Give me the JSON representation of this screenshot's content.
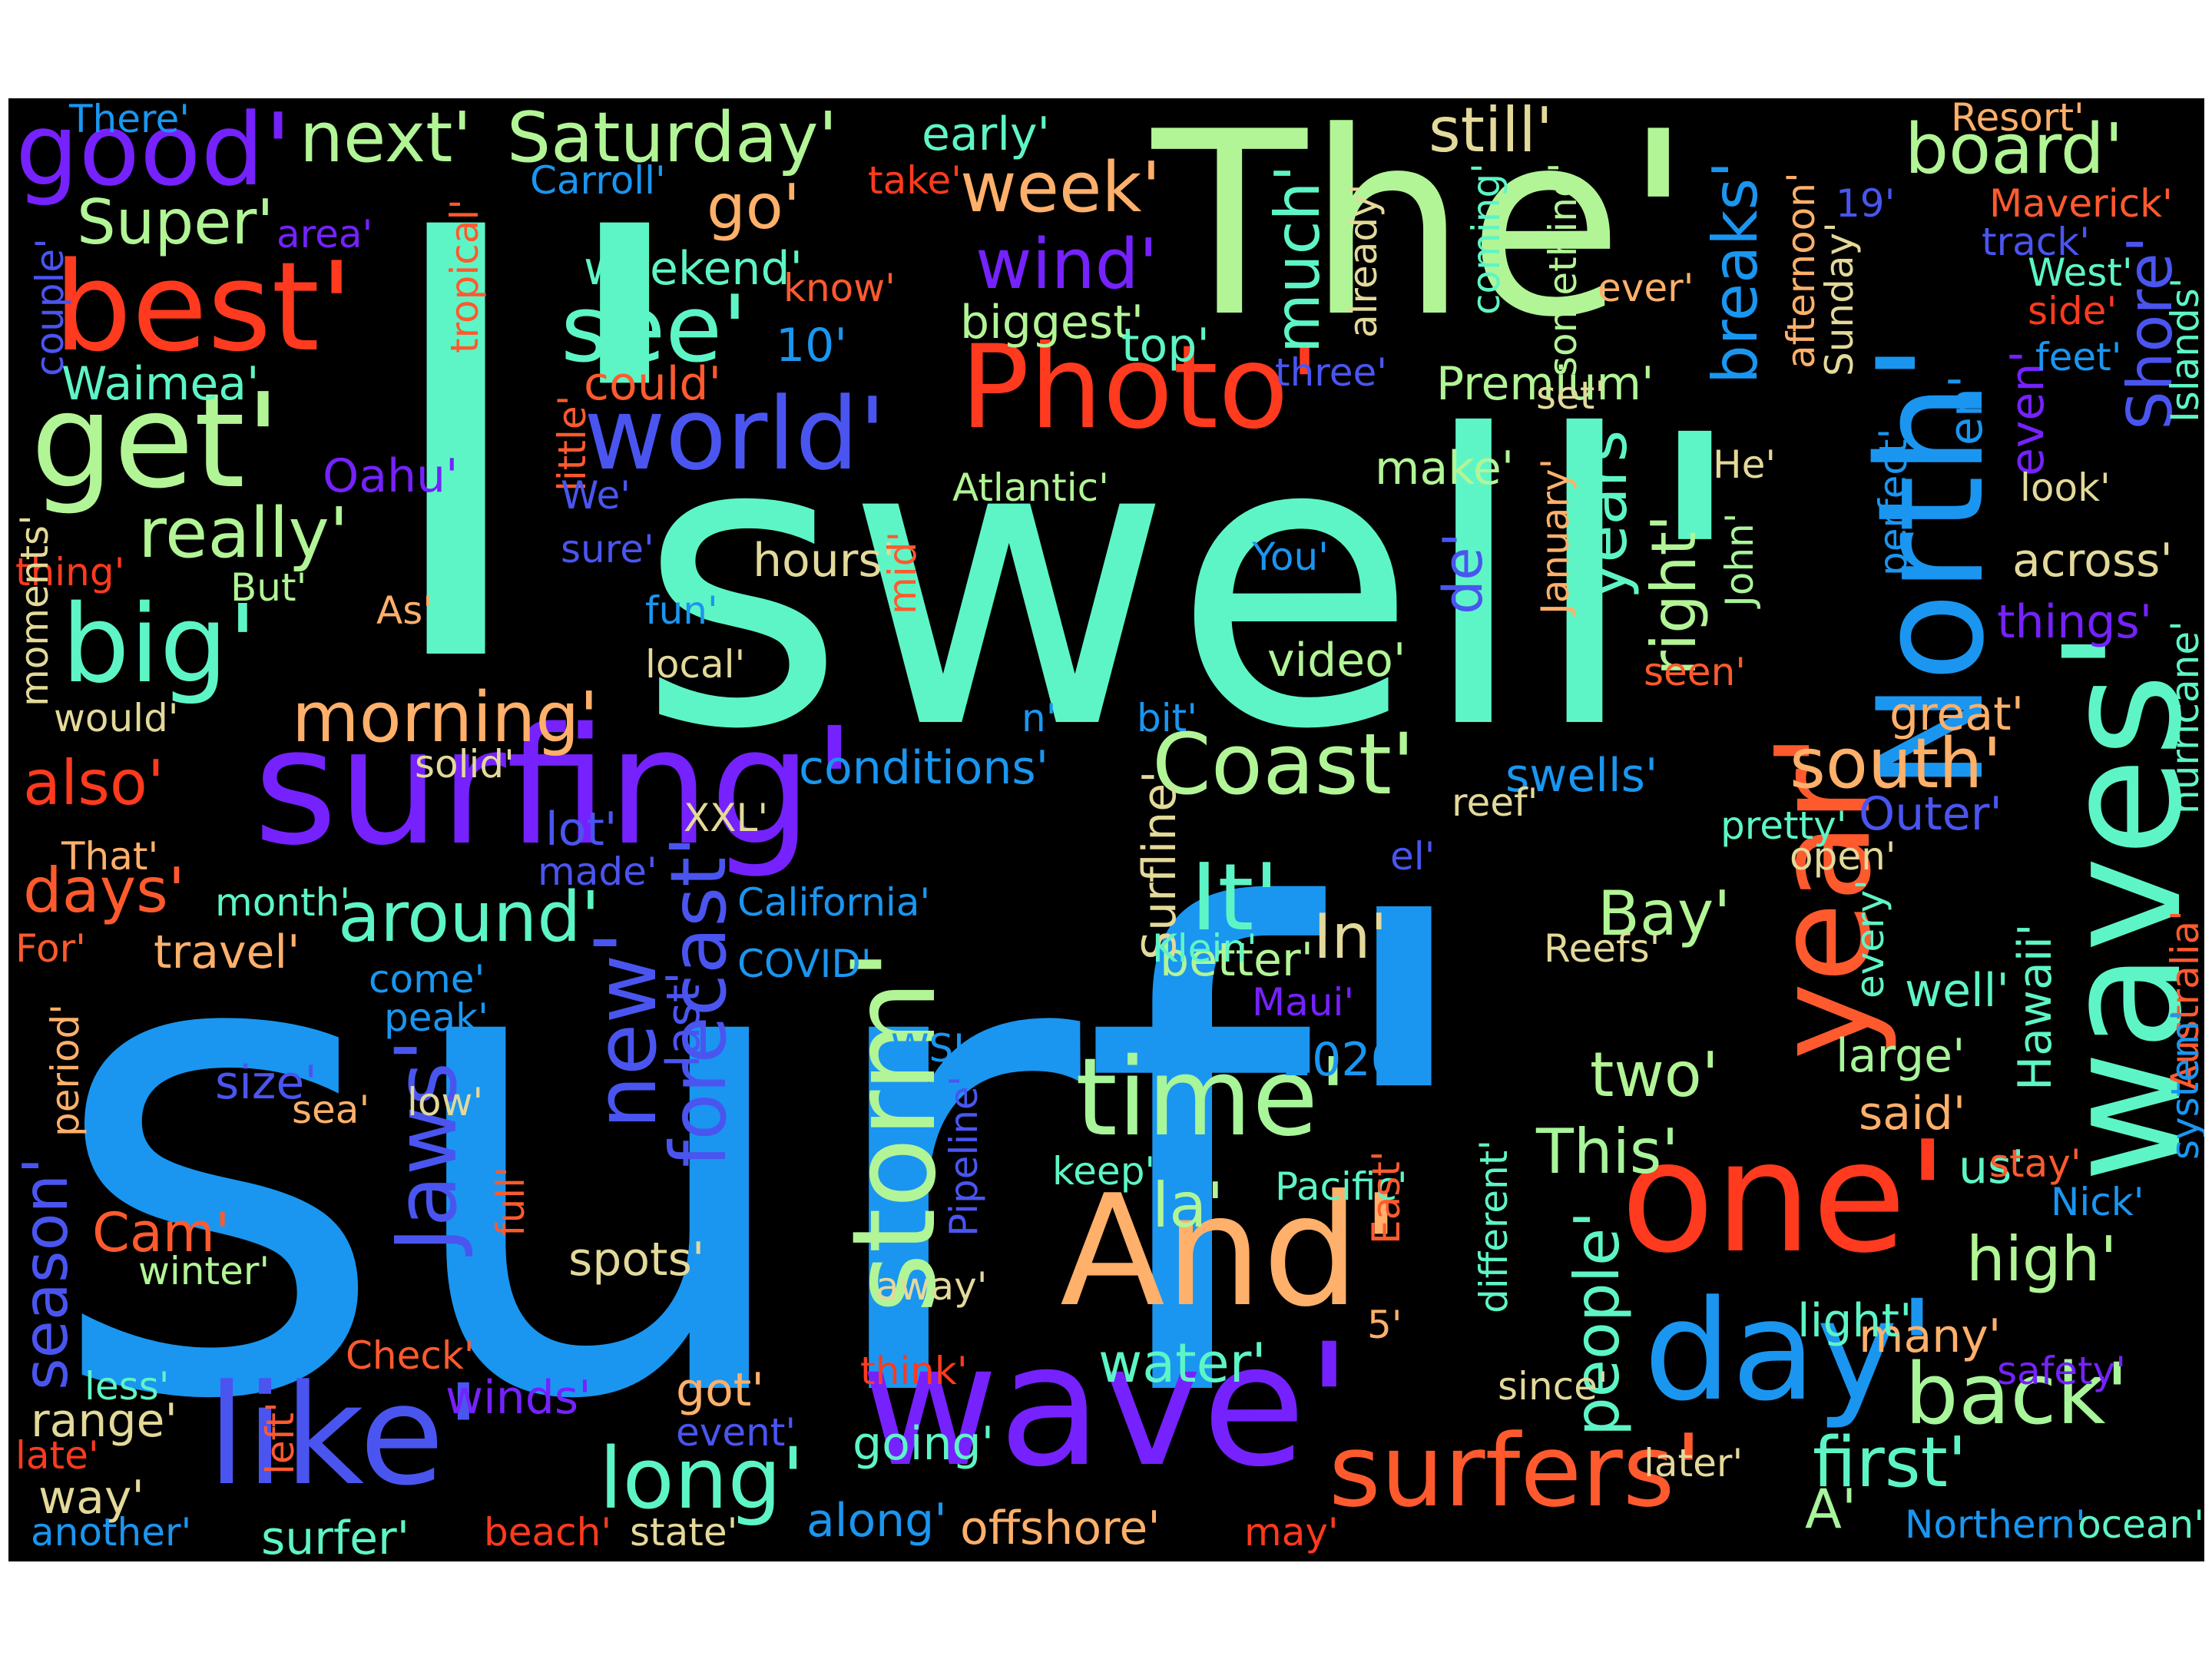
{
  "word_cloud": {
    "background": "#000000",
    "words": [
      {
        "text": "I'",
        "color": "#5ef5c6"
      },
      {
        "text": "surf'",
        "color": "#1a96f0"
      },
      {
        "text": "swell'",
        "color": "#5ef5c6"
      },
      {
        "text": "The'",
        "color": "#b2f596"
      },
      {
        "text": "surfing'",
        "color": "#7522ff"
      },
      {
        "text": "wave'",
        "color": "#7522ff"
      },
      {
        "text": "waves'",
        "color": "#5ef5c6"
      },
      {
        "text": "one'",
        "color": "#ff3a1e"
      },
      {
        "text": "day'",
        "color": "#1a96f0"
      },
      {
        "text": "North'",
        "color": "#1a96f0"
      },
      {
        "text": "year'",
        "color": "#ff5a2e"
      },
      {
        "text": "Photo'",
        "color": "#ff3a1e"
      },
      {
        "text": "And'",
        "color": "#ffb06a"
      },
      {
        "text": "storm'",
        "color": "#b2f596"
      },
      {
        "text": "like'",
        "color": "#4a55f0"
      },
      {
        "text": "time'",
        "color": "#a8f59a"
      },
      {
        "text": "get'",
        "color": "#b2f596"
      },
      {
        "text": "best'",
        "color": "#ff3a1e"
      },
      {
        "text": "big'",
        "color": "#5ef5c6"
      },
      {
        "text": "surfers'",
        "color": "#ff5a2e"
      },
      {
        "text": "good'",
        "color": "#7522ff"
      },
      {
        "text": "see'",
        "color": "#5ef5c6"
      },
      {
        "text": "world'",
        "color": "#4a55f0"
      },
      {
        "text": "Coast'",
        "color": "#b2f596"
      },
      {
        "text": "back'",
        "color": "#a8f59a"
      },
      {
        "text": "long'",
        "color": "#5ef5c6"
      },
      {
        "text": "first'",
        "color": "#5ef5c6"
      },
      {
        "text": "Jaws'",
        "color": "#4a55f0"
      },
      {
        "text": "new'",
        "color": "#4a55f0"
      },
      {
        "text": "forecast'",
        "color": "#4a55f0"
      },
      {
        "text": "really'",
        "color": "#b2f596"
      },
      {
        "text": "next'",
        "color": "#b2f596"
      },
      {
        "text": "Saturday'",
        "color": "#b2f596"
      },
      {
        "text": "board'",
        "color": "#b2f596"
      },
      {
        "text": "It'",
        "color": "#5ef5c6"
      },
      {
        "text": "morning'",
        "color": "#ffb06a"
      },
      {
        "text": "around'",
        "color": "#5ef5c6"
      },
      {
        "text": "week'",
        "color": "#ffb06a"
      },
      {
        "text": "wind'",
        "color": "#7522ff"
      },
      {
        "text": "south'",
        "color": "#ffb06a"
      },
      {
        "text": "season'",
        "color": "#4a55f0"
      },
      {
        "text": "days'",
        "color": "#ff5a2e"
      },
      {
        "text": "also'",
        "color": "#ff3a1e"
      },
      {
        "text": "much'",
        "color": "#5ef5c6"
      },
      {
        "text": "still'",
        "color": "#e3d99a"
      },
      {
        "text": "breaks'",
        "color": "#1a96f0"
      },
      {
        "text": "Shore'",
        "color": "#4a55f0"
      },
      {
        "text": "years'",
        "color": "#5ef5c6"
      },
      {
        "text": "right'",
        "color": "#b2f596"
      },
      {
        "text": "Super'",
        "color": "#b2f596"
      },
      {
        "text": "go'",
        "color": "#ffb06a"
      },
      {
        "text": "two'",
        "color": "#b2f596"
      },
      {
        "text": "This'",
        "color": "#a8f59a"
      },
      {
        "text": "high'",
        "color": "#b2f596"
      },
      {
        "text": "people'",
        "color": "#5ef5c6"
      },
      {
        "text": "Bay'",
        "color": "#b2f596"
      },
      {
        "text": "In'",
        "color": "#e3d99a"
      },
      {
        "text": "la'",
        "color": "#b2f596"
      },
      {
        "text": "water'",
        "color": "#5ef5c6"
      },
      {
        "text": "Cam'",
        "color": "#ff5a2e"
      },
      {
        "text": "biggest'",
        "color": "#b2f596"
      },
      {
        "text": "Premium'",
        "color": "#b2f596"
      },
      {
        "text": "video'",
        "color": "#b2f596"
      },
      {
        "text": "Hawaii'",
        "color": "#5ef5c6"
      },
      {
        "text": "Outer'",
        "color": "#4a55f0"
      },
      {
        "text": "swells'",
        "color": "#1a96f0"
      },
      {
        "text": "de'",
        "color": "#4a55f0"
      },
      {
        "text": "A'",
        "color": "#a8f59a"
      },
      {
        "text": "range'",
        "color": "#e3d99a"
      },
      {
        "text": "got'",
        "color": "#ffb06a"
      },
      {
        "text": "going'",
        "color": "#5ef5c6"
      },
      {
        "text": "offshore'",
        "color": "#ffb06a"
      },
      {
        "text": "surfer'",
        "color": "#5ef5c6"
      },
      {
        "text": "along'",
        "color": "#1a96f0"
      },
      {
        "text": "way'",
        "color": "#e3d99a"
      },
      {
        "text": "many'",
        "color": "#ffb06a"
      },
      {
        "text": "even'",
        "color": "#7522ff"
      },
      {
        "text": "en'",
        "color": "#1a96f0"
      },
      {
        "text": "things'",
        "color": "#7522ff"
      },
      {
        "text": "across'",
        "color": "#e3d99a"
      },
      {
        "text": "hours'",
        "color": "#e3d99a"
      },
      {
        "text": "make'",
        "color": "#b2f596"
      },
      {
        "text": "conditions'",
        "color": "#1a96f0"
      },
      {
        "text": "size'",
        "color": "#4a55f0"
      },
      {
        "text": "winds'",
        "color": "#7522ff"
      },
      {
        "text": "light'",
        "color": "#5ef5c6"
      },
      {
        "text": "large'",
        "color": "#a8f59a"
      },
      {
        "text": "said'",
        "color": "#ffb06a"
      },
      {
        "text": "us'",
        "color": "#5ef5c6"
      },
      {
        "text": "2020'",
        "color": "#1a96f0"
      },
      {
        "text": "better'",
        "color": "#b2f596"
      },
      {
        "text": "Surfline'",
        "color": "#e3d99a"
      },
      {
        "text": "well'",
        "color": "#5ef5c6"
      },
      {
        "text": "weekend'",
        "color": "#5ef5c6"
      },
      {
        "text": "Waimea'",
        "color": "#5ef5c6"
      },
      {
        "text": "early'",
        "color": "#5ef5c6"
      },
      {
        "text": "Oahu'",
        "color": "#7522ff"
      },
      {
        "text": "travel'",
        "color": "#ffb06a"
      },
      {
        "text": "last'",
        "color": "#4a55f0"
      },
      {
        "text": "spots'",
        "color": "#e3d99a"
      },
      {
        "text": "lot'",
        "color": "#4a55f0"
      },
      {
        "text": "could'",
        "color": "#ff5a2e"
      },
      {
        "text": "top'",
        "color": "#5ef5c6"
      },
      {
        "text": "10'",
        "color": "#1a96f0"
      },
      {
        "text": "great'",
        "color": "#ffb06a"
      },
      {
        "text": "Resort'",
        "color": "#ffb06a"
      },
      {
        "text": "track'",
        "color": "#4a55f0"
      },
      {
        "text": "Maverick'",
        "color": "#ff5a2e"
      },
      {
        "text": "West'",
        "color": "#5ef5c6"
      },
      {
        "text": "feet'",
        "color": "#1a96f0"
      },
      {
        "text": "look'",
        "color": "#e3d99a"
      },
      {
        "text": "Islands'",
        "color": "#5ef5c6"
      },
      {
        "text": "hurricane'",
        "color": "#5ef5c6"
      },
      {
        "text": "Australia'",
        "color": "#ff5a2e"
      },
      {
        "text": "system'",
        "color": "#1a96f0"
      },
      {
        "text": "ocean'",
        "color": "#5ef5c6"
      },
      {
        "text": "Northern'",
        "color": "#1a96f0"
      },
      {
        "text": "safety'",
        "color": "#7522ff"
      },
      {
        "text": "Nick'",
        "color": "#1a96f0"
      },
      {
        "text": "stay'",
        "color": "#ff5a2e"
      },
      {
        "text": "pretty'",
        "color": "#5ef5c6"
      },
      {
        "text": "open'",
        "color": "#e3d99a"
      },
      {
        "text": "every'",
        "color": "#5ef5c6"
      },
      {
        "text": "perfect'",
        "color": "#1a96f0"
      },
      {
        "text": "He'",
        "color": "#e3d99a"
      },
      {
        "text": "John'",
        "color": "#a8f59a"
      },
      {
        "text": "seen'",
        "color": "#ff5a2e"
      },
      {
        "text": "January'",
        "color": "#ffb06a"
      },
      {
        "text": "afternoon'",
        "color": "#ffb06a"
      },
      {
        "text": "Sunday'",
        "color": "#e3d99a"
      },
      {
        "text": "something'",
        "color": "#b2f596"
      },
      {
        "text": "coming'",
        "color": "#5ef5c6"
      },
      {
        "text": "already'",
        "color": "#e3d99a"
      },
      {
        "text": "ever'",
        "color": "#ffb06a"
      },
      {
        "text": "set'",
        "color": "#e3d99a"
      },
      {
        "text": "19'",
        "color": "#4a55f0"
      },
      {
        "text": "side'",
        "color": "#ff3a1e"
      },
      {
        "text": "There'",
        "color": "#1a96f0"
      },
      {
        "text": "Carroll'",
        "color": "#1a96f0"
      },
      {
        "text": "take'",
        "color": "#ff3a1e"
      },
      {
        "text": "area'",
        "color": "#7522ff"
      },
      {
        "text": "know'",
        "color": "#ff5a2e"
      },
      {
        "text": "couple'",
        "color": "#4a55f0"
      },
      {
        "text": "tropical'",
        "color": "#ff5a2e"
      },
      {
        "text": "little'",
        "color": "#ff5a2e"
      },
      {
        "text": "three'",
        "color": "#4a55f0"
      },
      {
        "text": "We'",
        "color": "#4a55f0"
      },
      {
        "text": "sure'",
        "color": "#4a55f0"
      },
      {
        "text": "Atlantic'",
        "color": "#b2f596"
      },
      {
        "text": "You'",
        "color": "#1a96f0"
      },
      {
        "text": "thing'",
        "color": "#ff3a1e"
      },
      {
        "text": "But'",
        "color": "#b2f596"
      },
      {
        "text": "As'",
        "color": "#ffb06a"
      },
      {
        "text": "fun'",
        "color": "#1a96f0"
      },
      {
        "text": "local'",
        "color": "#e3d99a"
      },
      {
        "text": "mid'",
        "color": "#ff5a2e"
      },
      {
        "text": "moments'",
        "color": "#e3d99a"
      },
      {
        "text": "would'",
        "color": "#e3d99a"
      },
      {
        "text": "n'",
        "color": "#1a96f0"
      },
      {
        "text": "bit'",
        "color": "#1a96f0"
      },
      {
        "text": "solid'",
        "color": "#e3d99a"
      },
      {
        "text": "That'",
        "color": "#ffb06a"
      },
      {
        "text": "XXL'",
        "color": "#e3d99a"
      },
      {
        "text": "made'",
        "color": "#4a55f0"
      },
      {
        "text": "reef'",
        "color": "#e3d99a"
      },
      {
        "text": "el'",
        "color": "#4a55f0"
      },
      {
        "text": "month'",
        "color": "#5ef5c6"
      },
      {
        "text": "California'",
        "color": "#1a96f0"
      },
      {
        "text": "For'",
        "color": "#ff5a2e"
      },
      {
        "text": "COVID'",
        "color": "#1a96f0"
      },
      {
        "text": "come'",
        "color": "#1a96f0"
      },
      {
        "text": "Klein'",
        "color": "#5ef5c6"
      },
      {
        "text": "Reefs'",
        "color": "#e3d99a"
      },
      {
        "text": "period'",
        "color": "#ffb06a"
      },
      {
        "text": "peak'",
        "color": "#1a96f0"
      },
      {
        "text": "Maui'",
        "color": "#7522ff"
      },
      {
        "text": "WSL'",
        "color": "#1a96f0"
      },
      {
        "text": "sea'",
        "color": "#ffb06a"
      },
      {
        "text": "low'",
        "color": "#e3d99a"
      },
      {
        "text": "full'",
        "color": "#ff5a2e"
      },
      {
        "text": "Pipeline'",
        "color": "#4a55f0"
      },
      {
        "text": "keep'",
        "color": "#5ef5c6"
      },
      {
        "text": "Pacific'",
        "color": "#5ef5c6"
      },
      {
        "text": "East'",
        "color": "#ff5a2e"
      },
      {
        "text": "different'",
        "color": "#5ef5c6"
      },
      {
        "text": "5'",
        "color": "#ffb06a"
      },
      {
        "text": "winter'",
        "color": "#b2f596"
      },
      {
        "text": "away'",
        "color": "#e3d99a"
      },
      {
        "text": "less'",
        "color": "#5ef5c6"
      },
      {
        "text": "Check'",
        "color": "#ff5a2e"
      },
      {
        "text": "think'",
        "color": "#ff3a1e"
      },
      {
        "text": "since'",
        "color": "#e3d99a"
      },
      {
        "text": "left'",
        "color": "#ff5a2e"
      },
      {
        "text": "late'",
        "color": "#ff3a1e"
      },
      {
        "text": "event'",
        "color": "#4a55f0"
      },
      {
        "text": "later'",
        "color": "#e3d99a"
      },
      {
        "text": "another'",
        "color": "#1a96f0"
      },
      {
        "text": "beach'",
        "color": "#ff3a1e"
      },
      {
        "text": "state'",
        "color": "#e3d99a"
      },
      {
        "text": "may'",
        "color": "#ff3a1e"
      }
    ]
  }
}
